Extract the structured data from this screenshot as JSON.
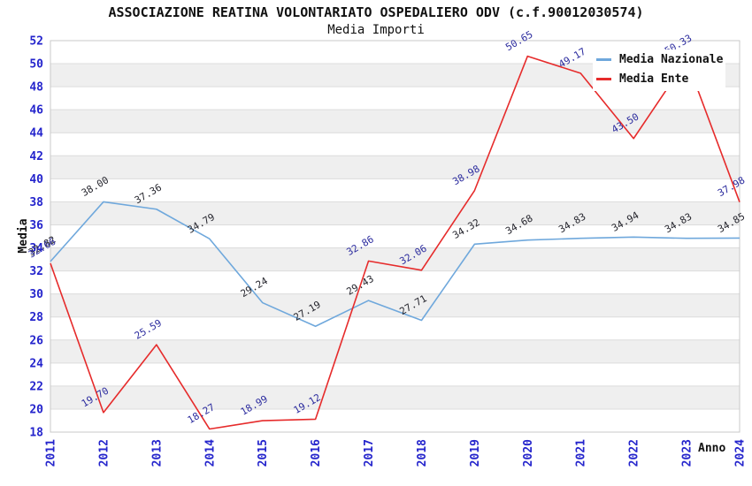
{
  "chart_data": {
    "type": "line",
    "title": "ASSOCIAZIONE REATINA VOLONTARIATO OSPEDALIERO ODV (c.f.90012030574)",
    "subtitle": "Media Importi",
    "xlabel": "Anno",
    "ylabel": "Media",
    "x": [
      "2011",
      "2012",
      "2013",
      "2014",
      "2015",
      "2016",
      "2017",
      "2018",
      "2019",
      "2020",
      "2021",
      "2022",
      "2023",
      "2024"
    ],
    "ylim": [
      18,
      52
    ],
    "ytick_step": 2,
    "grid": true,
    "band_rows": true,
    "legend_position": "top-right",
    "series": [
      {
        "name": "Media Nazionale",
        "color": "#6fa8dc",
        "label_color": "#26262e",
        "values": [
          32.82,
          38.0,
          37.36,
          34.79,
          29.24,
          27.19,
          29.43,
          27.71,
          34.32,
          34.68,
          34.83,
          34.94,
          34.83,
          34.85
        ]
      },
      {
        "name": "Media Ente",
        "color": "#e62b2b",
        "label_color": "#2b2b9e",
        "values": [
          32.66,
          19.7,
          25.59,
          18.27,
          18.99,
          19.12,
          32.86,
          32.06,
          38.98,
          50.65,
          49.17,
          43.5,
          50.33,
          37.98
        ]
      }
    ],
    "colors": {
      "tick_label": "#2424cc",
      "grid_line": "#dcdcdc",
      "band_fill": "#efefef",
      "plot_border": "#c8c8c8",
      "title": "#111111"
    }
  }
}
